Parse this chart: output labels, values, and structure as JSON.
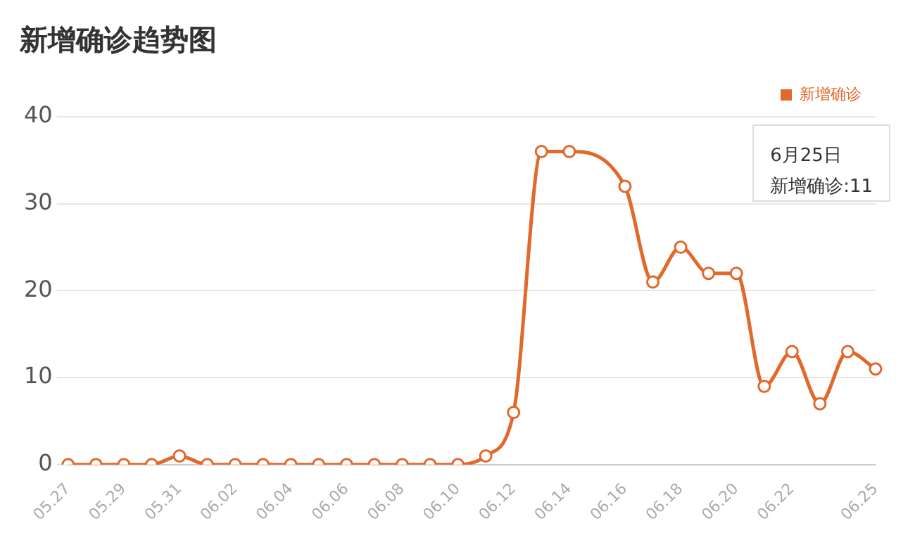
{
  "chart_data": {
    "type": "line",
    "title": "新增确诊趋势图",
    "categories": [
      "05.27",
      null,
      "05.29",
      null,
      "05.31",
      null,
      "06.02",
      null,
      "06.04",
      null,
      "06.06",
      null,
      "06.08",
      null,
      "06.10",
      null,
      "06.12",
      null,
      "06.14",
      null,
      "06.16",
      null,
      "06.18",
      null,
      "06.20",
      null,
      "06.22",
      null,
      null,
      "06.25"
    ],
    "series": [
      {
        "name": "新增确诊",
        "color": "#e2692c",
        "values": [
          0,
          0,
          0,
          0,
          1,
          0,
          0,
          0,
          0,
          0,
          0,
          0,
          0,
          0,
          0,
          1,
          6,
          36,
          36,
          null,
          32,
          21,
          25,
          22,
          22,
          9,
          13,
          7,
          13,
          11
        ]
      }
    ],
    "annotations": [
      "6月25日",
      "新增确诊:11"
    ],
    "ylim": [
      0,
      40
    ],
    "yticks": [
      0,
      10,
      20,
      30,
      40
    ],
    "grid": "y",
    "legend": "top right",
    "marker": "circle",
    "line_style": "solid"
  }
}
